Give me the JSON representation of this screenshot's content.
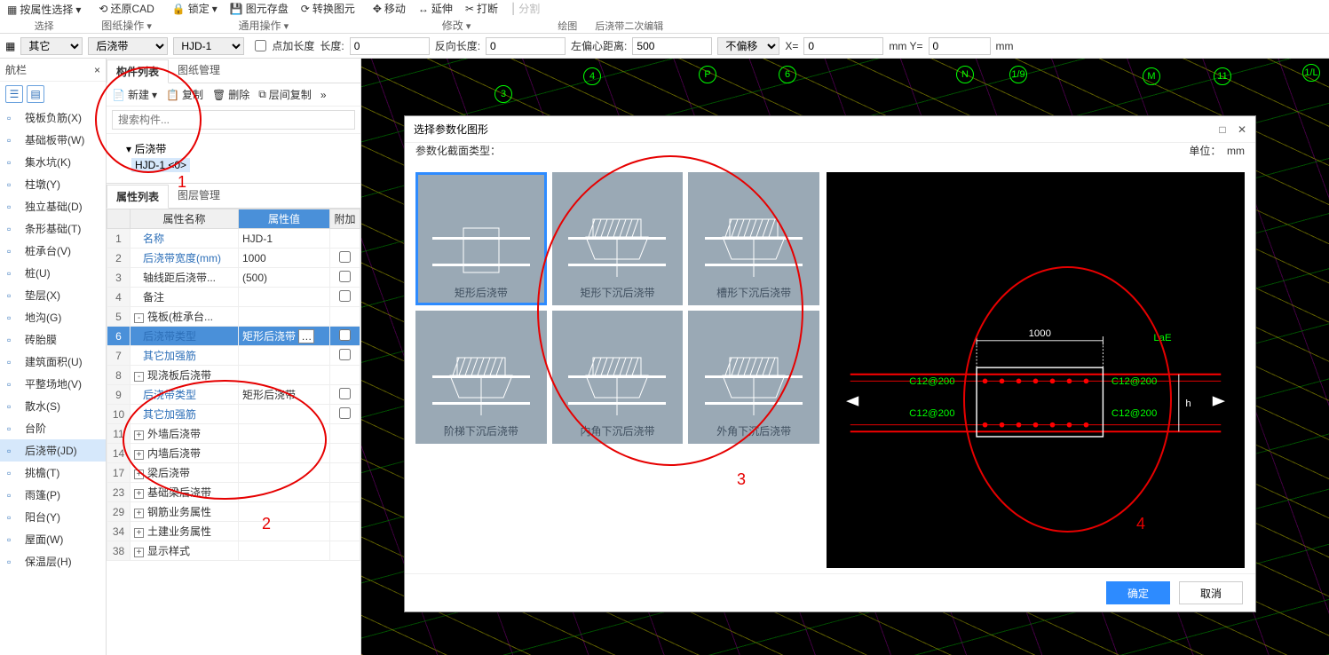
{
  "ribbon": {
    "groups": [
      {
        "label": "选择",
        "items": [
          "按属性选择"
        ]
      },
      {
        "label": "图纸操作",
        "items": [
          "还原CAD"
        ]
      },
      {
        "label": "通用操作",
        "items": [
          "锁定",
          "图元存盘",
          "转换图元"
        ]
      },
      {
        "label": "修改",
        "items": [
          "移动",
          "延伸",
          "打断",
          "分割"
        ]
      },
      {
        "label": "绘图",
        "items": [
          ""
        ]
      },
      {
        "label": "后浇带二次编辑",
        "items": [
          ""
        ]
      }
    ]
  },
  "paramBar": {
    "sel1": "其它",
    "sel2": "后浇带",
    "sel3": "HJD-1",
    "chkLabel": "点加长度",
    "len1Label": "长度:",
    "len1": "0",
    "len2Label": "反向长度:",
    "len2": "0",
    "offLabel": "左偏心距离:",
    "off": "500",
    "offsetSel": "不偏移",
    "xLabel": "X=",
    "x": "0",
    "yLabel": "mm Y=",
    "y": "0",
    "unit": "mm"
  },
  "navHeader": "航栏",
  "navItems": [
    {
      "label": "筏板负筋(X)"
    },
    {
      "label": "基础板带(W)"
    },
    {
      "label": "集水坑(K)"
    },
    {
      "label": "柱墩(Y)"
    },
    {
      "label": "独立基础(D)"
    },
    {
      "label": "条形基础(T)"
    },
    {
      "label": "桩承台(V)"
    },
    {
      "label": "桩(U)"
    },
    {
      "label": "垫层(X)"
    },
    {
      "label": "地沟(G)"
    },
    {
      "label": "砖胎膜"
    },
    {
      "label": "建筑面积(U)"
    },
    {
      "label": "平整场地(V)"
    },
    {
      "label": "散水(S)"
    },
    {
      "label": "台阶"
    },
    {
      "label": "后浇带(JD)",
      "sel": true
    },
    {
      "label": "挑檐(T)"
    },
    {
      "label": "雨篷(P)"
    },
    {
      "label": "阳台(Y)"
    },
    {
      "label": "屋面(W)"
    },
    {
      "label": "保温层(H)"
    }
  ],
  "midTabs": {
    "t1": "构件列表",
    "t2": "图纸管理"
  },
  "midToolbar": {
    "new": "新建",
    "copy": "复制",
    "del": "删除",
    "floorcopy": "层间复制"
  },
  "searchPlaceholder": "搜索构件...",
  "tree": {
    "root": "后浇带",
    "leaf": "HJD-1 <0>"
  },
  "propTabs": {
    "t1": "属性列表",
    "t2": "图层管理"
  },
  "propHeaders": {
    "name": "属性名称",
    "val": "属性值",
    "extra": "附加"
  },
  "propRows": [
    {
      "n": "1",
      "name": "名称",
      "val": "HJD-1",
      "link": true
    },
    {
      "n": "2",
      "name": "后浇带宽度(mm)",
      "val": "1000",
      "link": true,
      "chk": true
    },
    {
      "n": "3",
      "name": "轴线距后浇带...",
      "val": "(500)",
      "chk": true
    },
    {
      "n": "4",
      "name": "备注",
      "val": "",
      "chk": true
    },
    {
      "n": "5",
      "name": "筏板(桩承台...",
      "exp": "-"
    },
    {
      "n": "6",
      "name": "后浇带类型",
      "val": "矩形后浇带",
      "link": true,
      "sel": true,
      "chk": true,
      "dots": true
    },
    {
      "n": "7",
      "name": "其它加强筋",
      "link": true,
      "chk": true
    },
    {
      "n": "8",
      "name": "现浇板后浇带",
      "exp": "-"
    },
    {
      "n": "9",
      "name": "后浇带类型",
      "val": "矩形后浇带",
      "link": true,
      "chk": true
    },
    {
      "n": "10",
      "name": "其它加强筋",
      "link": true,
      "chk": true
    },
    {
      "n": "11",
      "name": "外墙后浇带",
      "exp": "+"
    },
    {
      "n": "14",
      "name": "内墙后浇带",
      "exp": "+"
    },
    {
      "n": "17",
      "name": "梁后浇带",
      "exp": "+"
    },
    {
      "n": "23",
      "name": "基础梁后浇带",
      "exp": "+"
    },
    {
      "n": "29",
      "name": "钢筋业务属性",
      "exp": "+"
    },
    {
      "n": "34",
      "name": "土建业务属性",
      "exp": "+"
    },
    {
      "n": "38",
      "name": "显示样式",
      "exp": "+"
    }
  ],
  "axisDots": [
    "3",
    "4",
    "P",
    "6",
    "N",
    "1/9",
    "M",
    "11",
    "1/L"
  ],
  "dialog": {
    "title": "选择参数化图形",
    "subLeft": "参数化截面类型：",
    "subRightLabel": "单位：",
    "subRightVal": "mm",
    "shapes": [
      {
        "cap": "矩形后浇带",
        "sel": true
      },
      {
        "cap": "矩形下沉后浇带"
      },
      {
        "cap": "槽形下沉后浇带"
      },
      {
        "cap": "阶梯下沉后浇带"
      },
      {
        "cap": "内角下沉后浇带"
      },
      {
        "cap": "外角下沉后浇带"
      }
    ],
    "preview": {
      "topDim": "1000",
      "rightTop": "LaE",
      "rightH": "h",
      "g1": "C12@200",
      "g2": "C12@200",
      "g3": "C12@200",
      "g4": "C12@200"
    },
    "ok": "确定",
    "cancel": "取消"
  },
  "annotations": {
    "l1": "1",
    "l2": "2",
    "l3": "3",
    "l4": "4"
  }
}
